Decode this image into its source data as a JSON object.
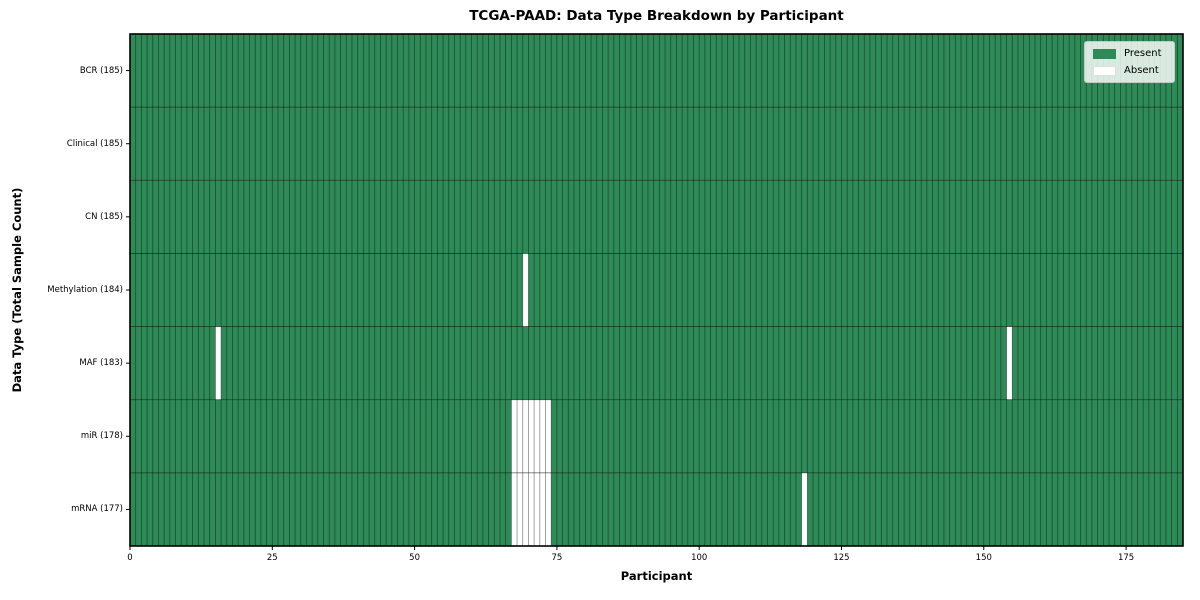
{
  "chart_data": {
    "type": "heatmap",
    "subtype": "presence-absence-matrix",
    "title": "TCGA-PAAD: Data Type Breakdown by Participant",
    "xlabel": "Participant",
    "ylabel": "Data Type (Total Sample Count)",
    "xlim": [
      0,
      185
    ],
    "n_participants": 185,
    "x_ticks": [
      0,
      25,
      50,
      75,
      100,
      125,
      150,
      175
    ],
    "grid": "per-cell edges",
    "legend_position": "upper right",
    "legend": [
      {
        "label": "Present",
        "color": "#2e8b57"
      },
      {
        "label": "Absent",
        "color": "#ffffff"
      }
    ],
    "colors": {
      "present": "#2e8b57",
      "absent": "#ffffff",
      "cell_edge": "rgba(0,0,0,0.45)",
      "row_edge": "rgba(0,0,0,0.55)",
      "spine": "#000000"
    },
    "rows": [
      {
        "label": "BCR (185)",
        "name": "BCR",
        "total": 185,
        "absent_participants": []
      },
      {
        "label": "Clinical (185)",
        "name": "Clinical",
        "total": 185,
        "absent_participants": []
      },
      {
        "label": "CN (185)",
        "name": "CN",
        "total": 185,
        "absent_participants": []
      },
      {
        "label": "Methylation (184)",
        "name": "Methylation",
        "total": 184,
        "absent_participants": [
          69
        ]
      },
      {
        "label": "MAF (183)",
        "name": "MAF",
        "total": 183,
        "absent_participants": [
          15,
          154
        ]
      },
      {
        "label": "miR (178)",
        "name": "miR",
        "total": 178,
        "absent_participants": [
          67,
          68,
          69,
          70,
          71,
          72,
          73
        ]
      },
      {
        "label": "mRNA (177)",
        "name": "mRNA",
        "total": 177,
        "absent_participants": [
          67,
          68,
          69,
          70,
          71,
          72,
          73,
          118
        ]
      }
    ]
  }
}
